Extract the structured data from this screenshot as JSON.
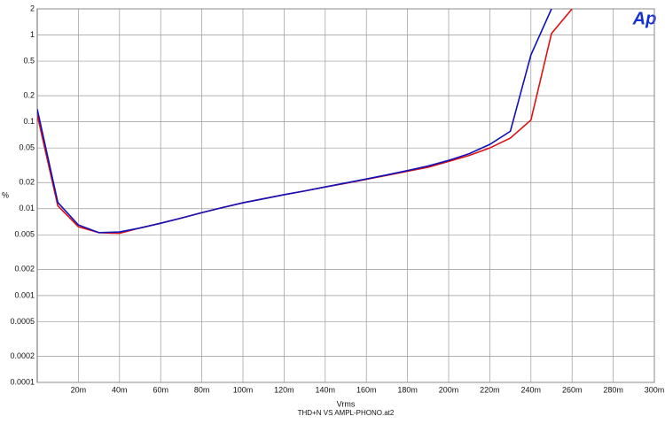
{
  "chart_data": {
    "type": "line",
    "logo": "Ap",
    "ylabel": "%",
    "xlabel": "Vrms",
    "footer": "THD+N VS AMPL-PHONO.at2",
    "xlim": [
      0,
      0.3
    ],
    "ylim": [
      0.0001,
      2
    ],
    "ylog": true,
    "grid": true,
    "xticks": [
      {
        "value": 0.02,
        "label": "20m"
      },
      {
        "value": 0.04,
        "label": "40m"
      },
      {
        "value": 0.06,
        "label": "60m"
      },
      {
        "value": 0.08,
        "label": "80m"
      },
      {
        "value": 0.1,
        "label": "100m"
      },
      {
        "value": 0.12,
        "label": "120m"
      },
      {
        "value": 0.14,
        "label": "140m"
      },
      {
        "value": 0.16,
        "label": "160m"
      },
      {
        "value": 0.18,
        "label": "180m"
      },
      {
        "value": 0.2,
        "label": "200m"
      },
      {
        "value": 0.22,
        "label": "220m"
      },
      {
        "value": 0.24,
        "label": "240m"
      },
      {
        "value": 0.26,
        "label": "260m"
      },
      {
        "value": 0.28,
        "label": "280m"
      },
      {
        "value": 0.3,
        "label": "300m"
      }
    ],
    "yticks": [
      2,
      1,
      0.5,
      0.2,
      0.1,
      0.05,
      0.02,
      0.01,
      0.005,
      0.002,
      0.001,
      0.0005,
      0.0002,
      0.0001
    ],
    "series": [
      {
        "color": "#dd1111",
        "x": [
          0,
          0.01,
          0.02,
          0.03,
          0.04,
          0.05,
          0.06,
          0.07,
          0.08,
          0.09,
          0.1,
          0.11,
          0.12,
          0.13,
          0.14,
          0.15,
          0.16,
          0.17,
          0.18,
          0.19,
          0.2,
          0.21,
          0.22,
          0.23,
          0.24,
          0.25,
          0.26
        ],
        "values": [
          0.12,
          0.0108,
          0.0062,
          0.0053,
          0.0052,
          0.006,
          0.0068,
          0.0078,
          0.009,
          0.0103,
          0.0117,
          0.013,
          0.0145,
          0.016,
          0.0178,
          0.0196,
          0.0218,
          0.0242,
          0.027,
          0.03,
          0.035,
          0.041,
          0.05,
          0.065,
          0.105,
          1.04,
          2
        ]
      },
      {
        "color": "#1111bb",
        "x": [
          0,
          0.01,
          0.02,
          0.03,
          0.04,
          0.05,
          0.06,
          0.07,
          0.08,
          0.09,
          0.1,
          0.11,
          0.12,
          0.13,
          0.14,
          0.15,
          0.16,
          0.17,
          0.18,
          0.19,
          0.2,
          0.21,
          0.22,
          0.23,
          0.24,
          0.25
        ],
        "values": [
          0.14,
          0.0118,
          0.0065,
          0.0053,
          0.0054,
          0.006,
          0.0068,
          0.0078,
          0.009,
          0.0103,
          0.0117,
          0.013,
          0.0145,
          0.016,
          0.0178,
          0.0198,
          0.022,
          0.0245,
          0.0275,
          0.031,
          0.036,
          0.043,
          0.055,
          0.078,
          0.59,
          2
        ]
      }
    ]
  }
}
